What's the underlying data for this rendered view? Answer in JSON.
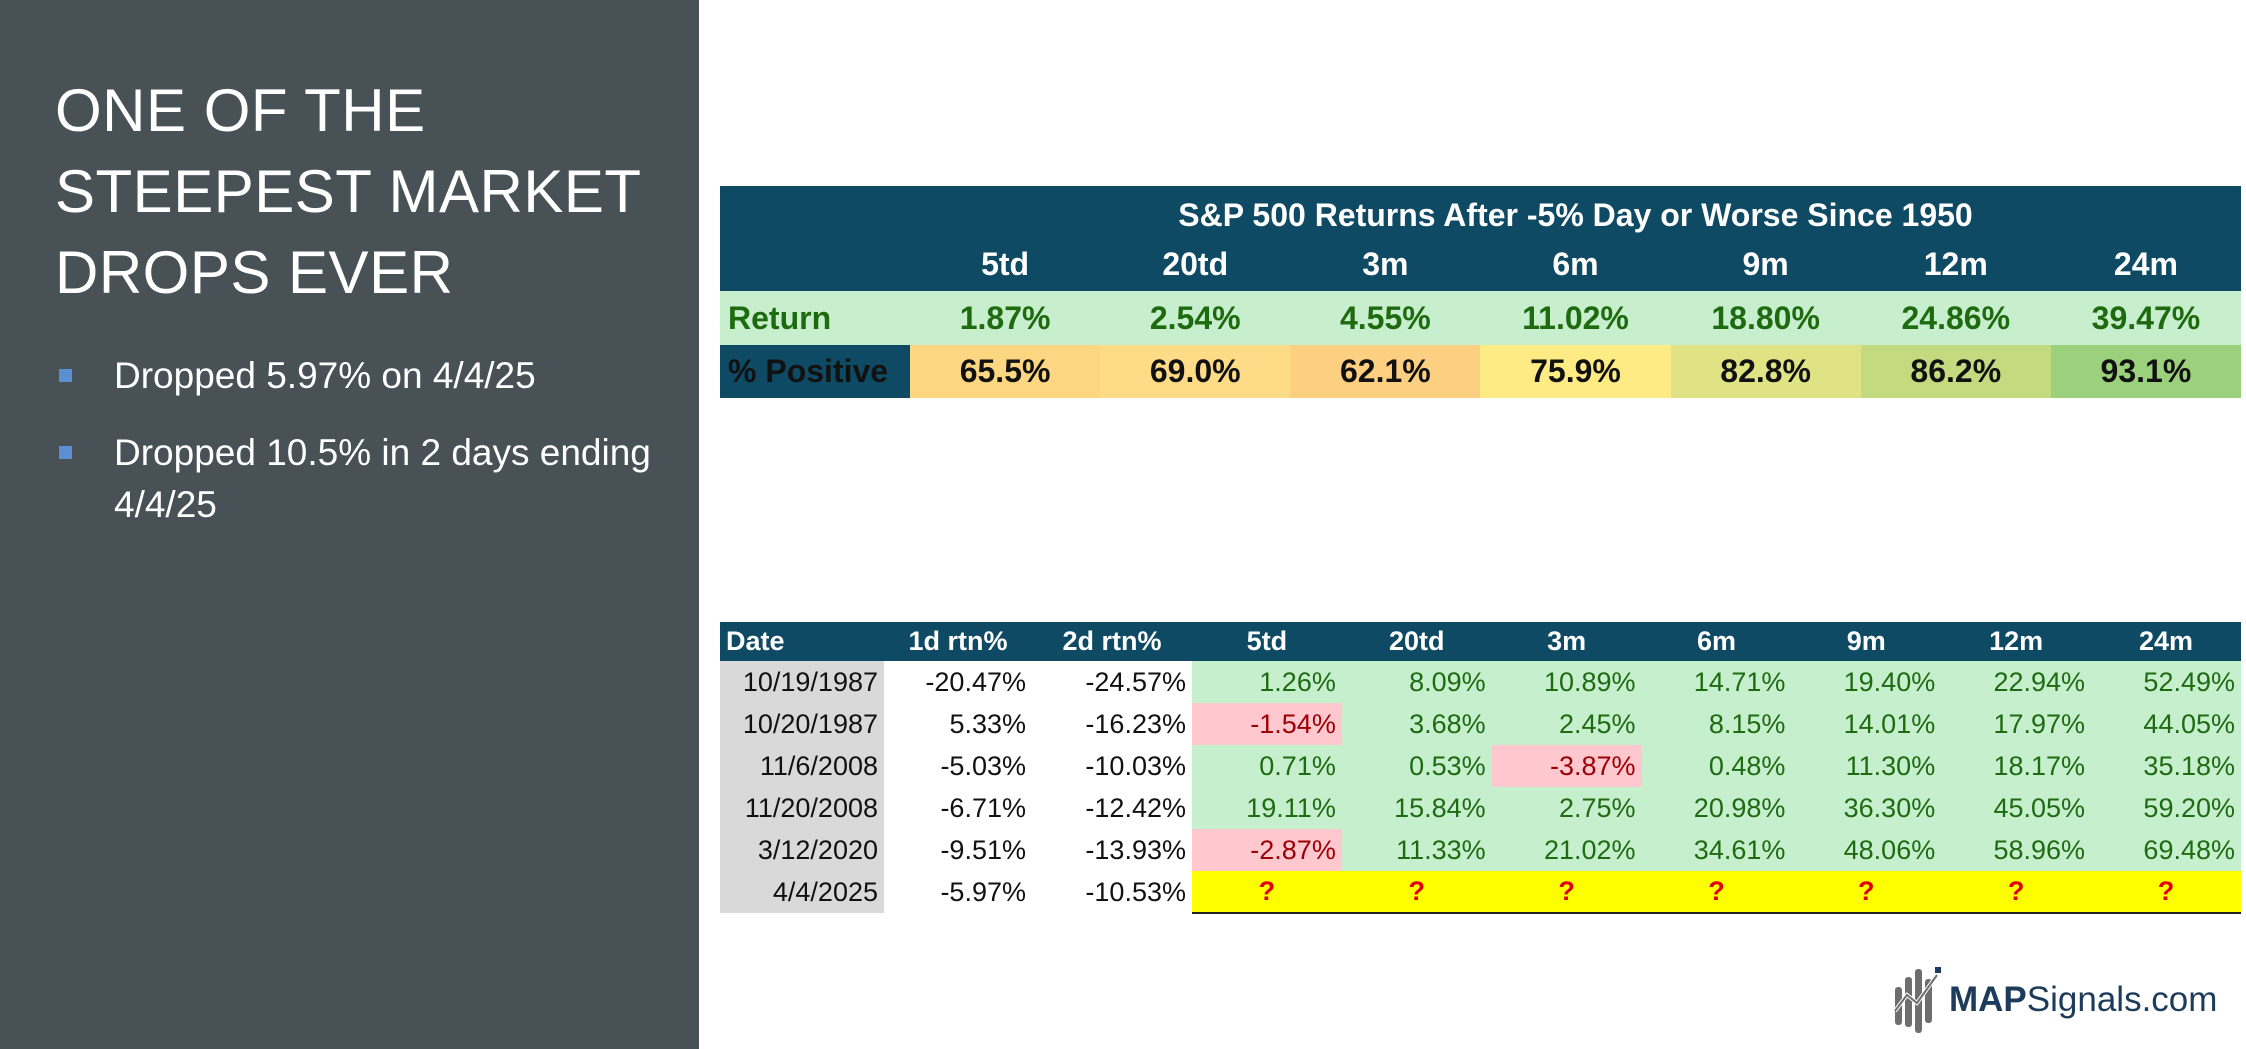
{
  "slide": {
    "title": "ONE OF THE STEEPEST MARKET DROPS EVER",
    "bullets": [
      "Dropped 5.97% on 4/4/25",
      "Dropped 10.5% in 2 days ending 4/4/25"
    ]
  },
  "top_table": {
    "title": "S&P 500 Returns After -5% Day or Worse Since 1950",
    "columns": [
      "5td",
      "20td",
      "3m",
      "6m",
      "9m",
      "12m",
      "24m"
    ],
    "rows": [
      {
        "label": "Return",
        "values": [
          "1.87%",
          "2.54%",
          "4.55%",
          "11.02%",
          "18.80%",
          "24.86%",
          "39.47%"
        ]
      },
      {
        "label": "% Positive",
        "values": [
          "65.5%",
          "69.0%",
          "62.1%",
          "75.9%",
          "82.8%",
          "86.2%",
          "93.1%"
        ],
        "colors": [
          "#fdd682",
          "#fedb87",
          "#fdcf80",
          "#ffeb84",
          "#e0e383",
          "#c3da7e",
          "#9bd07c"
        ]
      }
    ]
  },
  "bottom_table": {
    "headers": [
      "Date",
      "1d rtn%",
      "2d rtn%",
      "5td",
      "20td",
      "3m",
      "6m",
      "9m",
      "12m",
      "24m"
    ],
    "rows": [
      {
        "date": "10/19/1987",
        "d1": "-20.47%",
        "d2": "-24.57%",
        "values": [
          "1.26%",
          "8.09%",
          "10.89%",
          "14.71%",
          "19.40%",
          "22.94%",
          "52.49%"
        ]
      },
      {
        "date": "10/20/1987",
        "d1": "5.33%",
        "d2": "-16.23%",
        "values": [
          "-1.54%",
          "3.68%",
          "2.45%",
          "8.15%",
          "14.01%",
          "17.97%",
          "44.05%"
        ]
      },
      {
        "date": "11/6/2008",
        "d1": "-5.03%",
        "d2": "-10.03%",
        "values": [
          "0.71%",
          "0.53%",
          "-3.87%",
          "0.48%",
          "11.30%",
          "18.17%",
          "35.18%"
        ]
      },
      {
        "date": "11/20/2008",
        "d1": "-6.71%",
        "d2": "-12.42%",
        "values": [
          "19.11%",
          "15.84%",
          "2.75%",
          "20.98%",
          "36.30%",
          "45.05%",
          "59.20%"
        ]
      },
      {
        "date": "3/12/2020",
        "d1": "-9.51%",
        "d2": "-13.93%",
        "values": [
          "-2.87%",
          "11.33%",
          "21.02%",
          "34.61%",
          "48.06%",
          "58.96%",
          "69.48%"
        ]
      },
      {
        "date": "4/4/2025",
        "d1": "-5.97%",
        "d2": "-10.53%",
        "values": [
          "?",
          "?",
          "?",
          "?",
          "?",
          "?",
          "?"
        ]
      }
    ]
  },
  "logo": {
    "bold_text": "MAP",
    "text": "Signals.com",
    "icon": "mapsignals-bars-icon"
  },
  "colors": {
    "left_panel": "#475156",
    "table_header": "#0e4a63",
    "positive_cell": "#c6efce",
    "negative_cell": "#ffc7ce",
    "pending_cell": "#ffff00"
  }
}
